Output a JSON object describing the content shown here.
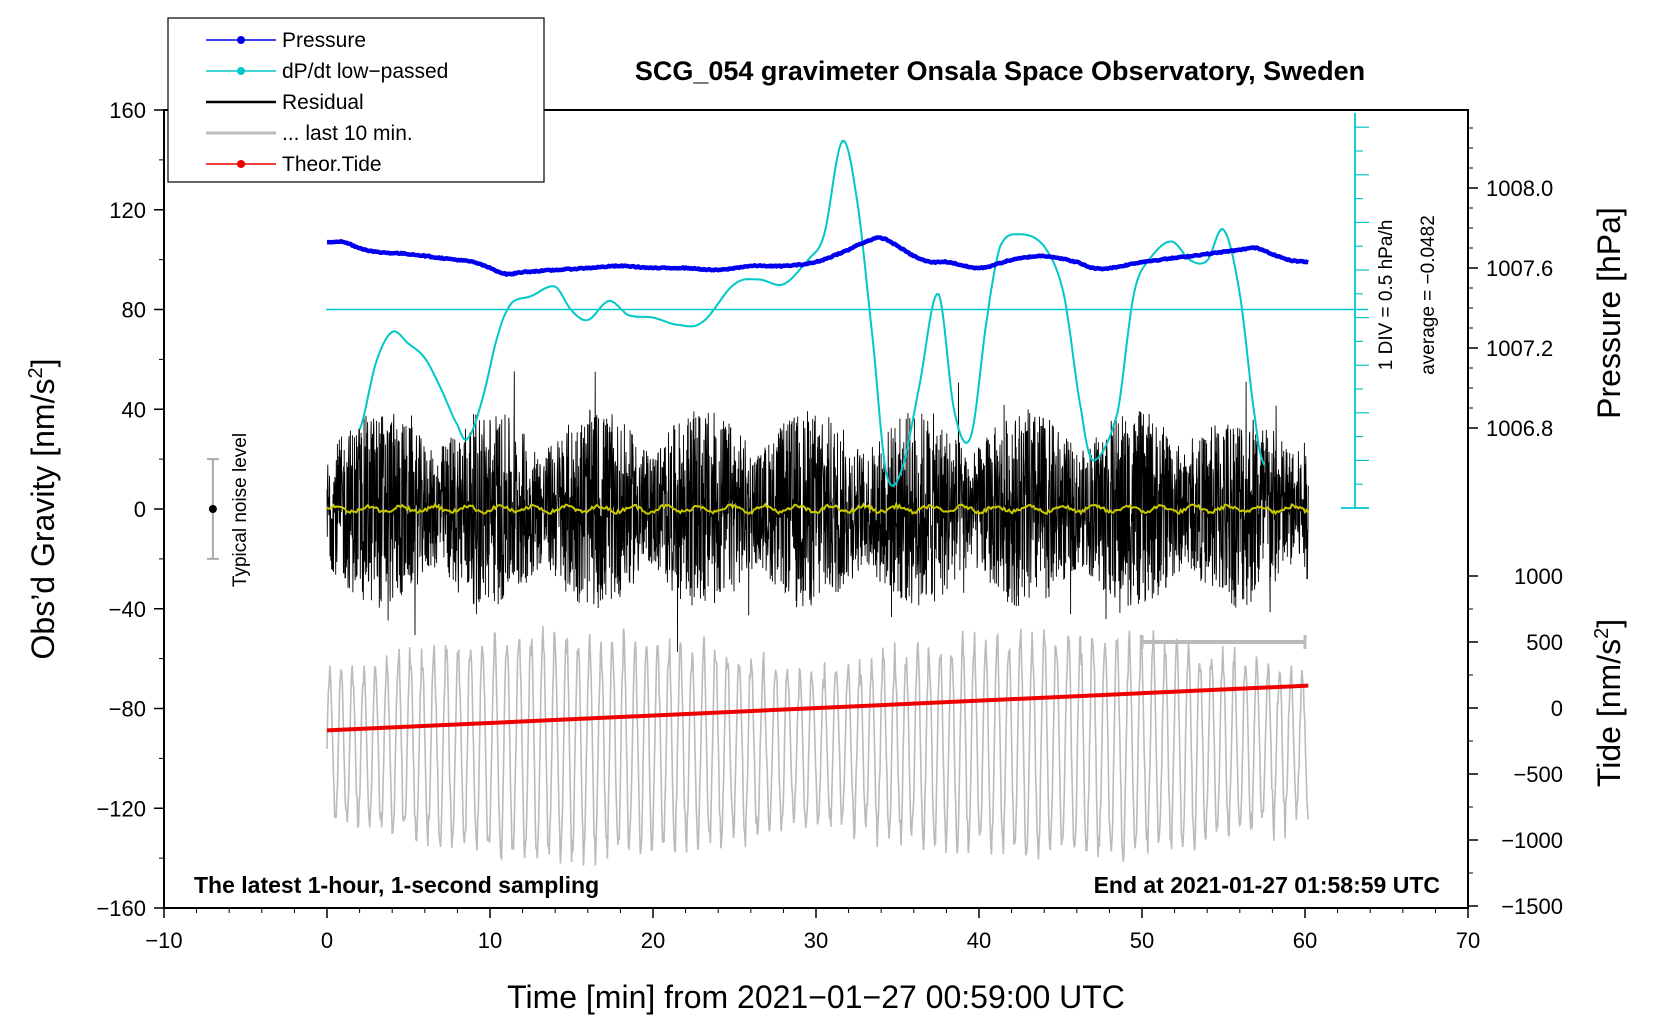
{
  "chart_data": {
    "type": "line",
    "title": "SCG_054 gravimeter Onsala Space Observatory, Sweden",
    "xlabel": "Time [min] from 2021−01−27 00:59:00 UTC",
    "ylabel_left": "Obs’d Gravity [nm/s²]",
    "ylabel_right_top": "Pressure [hPa]",
    "ylabel_right_bottom": "Tide [nm/s²]",
    "xlim": [
      -10,
      70
    ],
    "ylim": [
      -160,
      160
    ],
    "x_ticks": [
      -10,
      0,
      10,
      20,
      30,
      40,
      50,
      60,
      70
    ],
    "x_tick_labels": [
      "−10",
      "0",
      "10",
      "20",
      "30",
      "40",
      "50",
      "60",
      "70"
    ],
    "y_ticks": [
      -160,
      -120,
      -80,
      -40,
      0,
      40,
      80,
      120,
      160
    ],
    "y_tick_labels": [
      "−160",
      "−120",
      "−80",
      "−40",
      "0",
      "40",
      "80",
      "120",
      "160"
    ],
    "pressure_axis": {
      "ticks": [
        1006.8,
        1007.2,
        1007.6,
        1008.0
      ],
      "tick_labels": [
        "1006.8",
        "1007.2",
        "1007.6",
        "1008.0"
      ],
      "range": [
        1006.44,
        1008.35
      ]
    },
    "tide_axis": {
      "ticks": [
        -1500,
        -1000,
        -500,
        0,
        500,
        1000
      ],
      "tick_labels": [
        "−1500",
        "−1000",
        "−500",
        "0",
        "500",
        "1000"
      ],
      "range": [
        -1500,
        1000
      ]
    },
    "legend": [
      {
        "label": "Pressure",
        "color": "#0000ee",
        "marker": true
      },
      {
        "label": "dP/dt low−passed",
        "color": "#00c8c8",
        "marker": true
      },
      {
        "label": "Residual",
        "color": "#000000",
        "marker": false
      },
      {
        "label": "... last 10 min.",
        "color": "#bbbbbb",
        "marker": false
      },
      {
        "label": "Theor.Tide",
        "color": "#ee0000",
        "marker": true
      }
    ],
    "series": [
      {
        "name": "Pressure",
        "unit": "hPa",
        "color": "#0000ee",
        "x": [
          0,
          1,
          2,
          3,
          5,
          7,
          9,
          10,
          11,
          12,
          14,
          16,
          18,
          20,
          22,
          24,
          26,
          28,
          30,
          32,
          33,
          34,
          35,
          36,
          37,
          38,
          40,
          42,
          44,
          46,
          47,
          48,
          50,
          52,
          54,
          56,
          57,
          58,
          59,
          60.2
        ],
        "values": [
          1007.73,
          1007.73,
          1007.7,
          1007.68,
          1007.67,
          1007.65,
          1007.63,
          1007.6,
          1007.57,
          1007.58,
          1007.59,
          1007.6,
          1007.61,
          1007.6,
          1007.6,
          1007.59,
          1007.61,
          1007.61,
          1007.63,
          1007.69,
          1007.73,
          1007.75,
          1007.71,
          1007.66,
          1007.63,
          1007.63,
          1007.6,
          1007.64,
          1007.66,
          1007.63,
          1007.6,
          1007.6,
          1007.63,
          1007.65,
          1007.67,
          1007.69,
          1007.7,
          1007.67,
          1007.64,
          1007.63
        ]
      },
      {
        "name": "dP/dt low-passed",
        "unit": "DIV (1 DIV = 0.5 hPa/h)",
        "color": "#00c8c8",
        "x": [
          2,
          3,
          4,
          5,
          6,
          7,
          8,
          8.6,
          9.5,
          10.5,
          11.3,
          12.5,
          14,
          15,
          16,
          17.3,
          18.5,
          20,
          21.5,
          23,
          25,
          26.5,
          28,
          29.5,
          30.5,
          31.6,
          32.5,
          33.5,
          34.3,
          35.2,
          36.3,
          37.5,
          38.5,
          39.5,
          40.5,
          41.3,
          42.5,
          44,
          45.2,
          46.3,
          47,
          48.5,
          49.5,
          50.5,
          51.8,
          53,
          54,
          55,
          56,
          57,
          57.5
        ],
        "values": [
          3.3,
          6.1,
          7.4,
          6.9,
          6.3,
          5.0,
          3.5,
          2.9,
          4.5,
          7.3,
          8.6,
          8.9,
          9.3,
          8.3,
          7.9,
          8.7,
          8.1,
          8.0,
          7.7,
          7.8,
          9.4,
          9.6,
          9.4,
          10.4,
          11.5,
          15.4,
          13.0,
          7.0,
          1.5,
          1.5,
          5.0,
          9.0,
          4.0,
          3.0,
          8.0,
          11.0,
          11.5,
          11.0,
          9.0,
          4.0,
          2.0,
          4.0,
          9.0,
          10.5,
          11.2,
          10.4,
          10.4,
          11.7,
          9.0,
          3.5,
          1.8
        ]
      },
      {
        "name": "Residual",
        "unit": "nm/s²",
        "color": "#000000",
        "x_range": [
          0,
          60.2
        ],
        "typical_amplitude": 40,
        "min": -65,
        "max": 80
      },
      {
        "name": "Residual (smoothed)",
        "unit": "nm/s²",
        "color": "#c8c800",
        "x_range": [
          0,
          60.2
        ],
        "values_approx": 0
      },
      {
        "name": "... last 10 min.",
        "unit": "nm/s² (offset)",
        "color": "#bbbbbb",
        "x_range": [
          0,
          60.2
        ],
        "center": -95,
        "typical_amplitude": 30
      },
      {
        "name": "Theor.Tide",
        "unit": "nm/s²",
        "color": "#ee0000",
        "x": [
          0,
          60.2
        ],
        "values": [
          -170,
          170
        ]
      }
    ],
    "pressure_reference_line": 80,
    "dpdt_average_label": "average = −0.0482",
    "dpdt_scale_label": "1 DIV = 0.5 hPa/h",
    "noise_level_label": "Typical noise level",
    "noise_bar": {
      "x": -7,
      "low": -20,
      "high": 20
    },
    "last10_bar": {
      "x_start": 50,
      "x_end": 60
    },
    "bottom_left_text": "The latest 1-hour, 1-second sampling",
    "bottom_right_text": "End at 2021-01-27 01:58:59 UTC"
  }
}
